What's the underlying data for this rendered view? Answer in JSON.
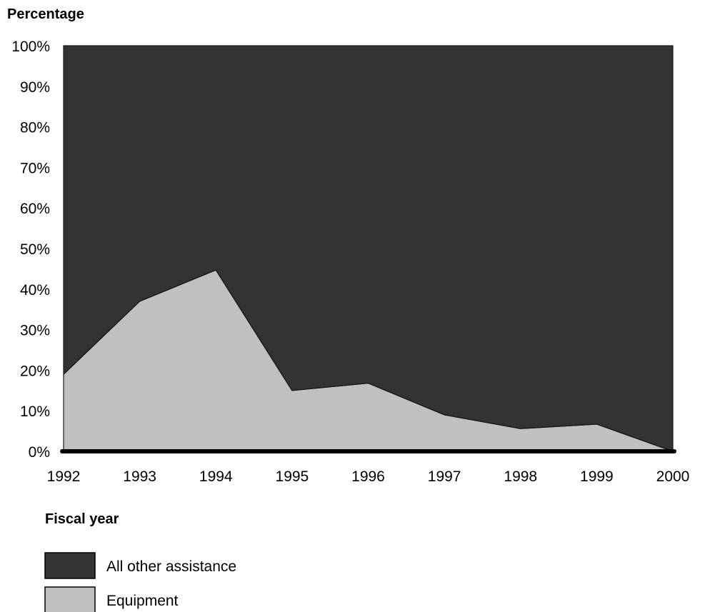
{
  "chart_data": {
    "type": "area",
    "stacked": true,
    "normalized_percent": true,
    "ylabel": "Percentage",
    "xlabel": "Fiscal year",
    "x": [
      "1992",
      "1993",
      "1994",
      "1995",
      "1996",
      "1997",
      "1998",
      "1999",
      "2000"
    ],
    "y_ticks": [
      "0%",
      "10%",
      "20%",
      "30%",
      "40%",
      "50%",
      "60%",
      "70%",
      "80%",
      "90%",
      "100%"
    ],
    "ylim": [
      0,
      100
    ],
    "grid": false,
    "legend_position": "bottom-left",
    "series": [
      {
        "name": "Equipment",
        "color": "#c0c0c0",
        "values": [
          19,
          37,
          44.7,
          15,
          16.8,
          9,
          5.6,
          6.7,
          0
        ]
      },
      {
        "name": "All other assistance",
        "color": "#333333",
        "values": [
          81,
          63,
          55.3,
          85,
          83.2,
          91,
          94.4,
          93.3,
          100
        ]
      }
    ]
  }
}
